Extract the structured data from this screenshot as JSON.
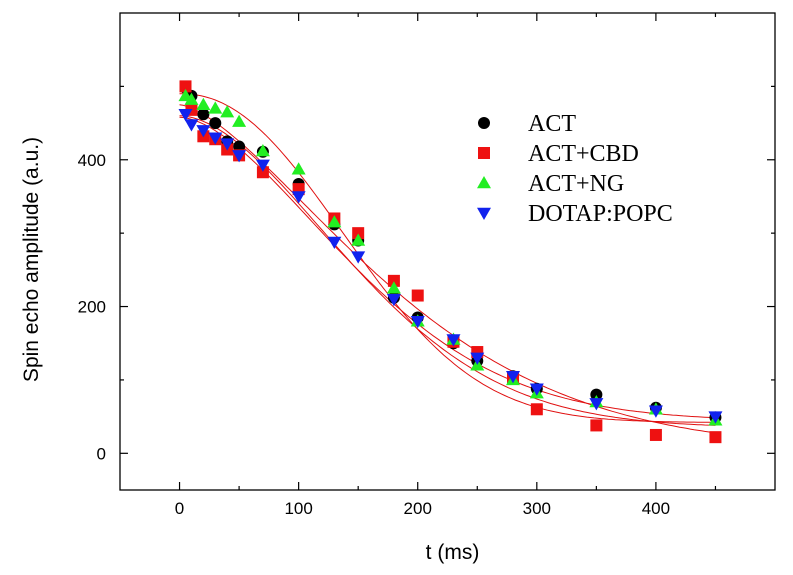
{
  "chart_data": {
    "type": "scatter",
    "xlabel": "t (ms)",
    "ylabel": "Spin echo amplitude (a.u.)",
    "xlim": [
      -50,
      500
    ],
    "ylim": [
      -50,
      600
    ],
    "xticks": [
      0,
      100,
      200,
      300,
      400
    ],
    "yticks": [
      0,
      200,
      400
    ],
    "legend_position": "top-right",
    "fit_color": "#e01010",
    "series": [
      {
        "name": "ACT",
        "marker": "circle",
        "color": "#000000",
        "x": [
          5,
          10,
          20,
          30,
          40,
          50,
          70,
          100,
          130,
          150,
          180,
          200,
          230,
          250,
          280,
          300,
          350,
          400,
          450
        ],
        "y": [
          498,
          487,
          462,
          450,
          425,
          418,
          411,
          367,
          312,
          290,
          212,
          185,
          150,
          126,
          105,
          88,
          80,
          62,
          49
        ]
      },
      {
        "name": "ACT+CBD",
        "marker": "square",
        "color": "#ee1111",
        "x": [
          5,
          10,
          20,
          30,
          40,
          50,
          70,
          100,
          130,
          150,
          180,
          200,
          230,
          250,
          280,
          300,
          350,
          400,
          450
        ],
        "y": [
          500,
          468,
          432,
          428,
          414,
          406,
          383,
          360,
          320,
          300,
          235,
          215,
          152,
          138,
          102,
          60,
          38,
          25,
          22
        ]
      },
      {
        "name": "ACT+NG",
        "marker": "triangle-up",
        "color": "#22ee22",
        "x": [
          5,
          10,
          20,
          30,
          40,
          50,
          70,
          100,
          130,
          150,
          180,
          200,
          230,
          250,
          280,
          300,
          350,
          400,
          450
        ],
        "y": [
          487,
          482,
          475,
          470,
          465,
          452,
          412,
          387,
          315,
          290,
          225,
          180,
          155,
          120,
          100,
          82,
          70,
          60,
          45
        ]
      },
      {
        "name": "DOTAP:POPC",
        "marker": "triangle-down",
        "color": "#1122ee",
        "x": [
          5,
          10,
          20,
          30,
          40,
          50,
          70,
          100,
          130,
          150,
          180,
          200,
          230,
          250,
          280,
          300,
          350,
          400,
          450
        ],
        "y": [
          462,
          448,
          440,
          430,
          422,
          406,
          393,
          350,
          288,
          268,
          210,
          180,
          155,
          130,
          105,
          88,
          68,
          58,
          50
        ]
      }
    ],
    "fits": [
      {
        "series": "ACT",
        "y0": 460,
        "a": 425,
        "tau": 185,
        "m": 1.8
      },
      {
        "series": "ACT+CBD",
        "y0": 475,
        "a": 470,
        "tau": 215,
        "m": 1.5
      },
      {
        "series": "ACT+NG",
        "y0": 490,
        "a": 448,
        "tau": 180,
        "m": 2.2
      },
      {
        "series": "DOTAP:POPC",
        "y0": 458,
        "a": 414,
        "tau": 185,
        "m": 1.7
      }
    ]
  }
}
